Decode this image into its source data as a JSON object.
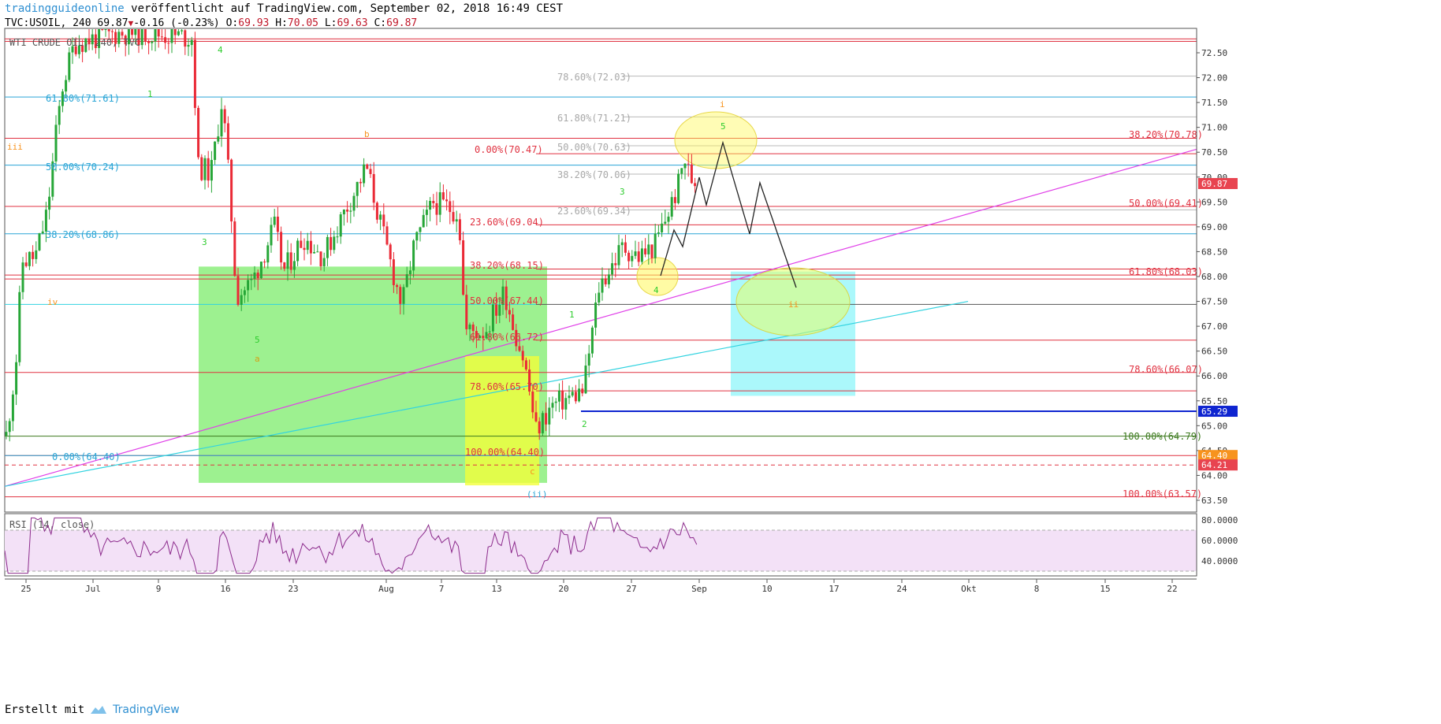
{
  "header": {
    "author": "tradingguideonline",
    "published_text": "veröffentlicht auf TradingView.com, September 02, 2018 16:49 CEST",
    "symbol": "TVC:USOIL",
    "interval": "240",
    "last": "69.87",
    "change": "-0.16 (-0.23%)",
    "open_label": "O:",
    "open": "69.93",
    "high_label": "H:",
    "high": "70.05",
    "low_label": "L:",
    "low": "69.63",
    "close_label": "C:",
    "close": "69.87"
  },
  "footer": {
    "created_with": "Erstellt mit",
    "brand": "TradingView"
  },
  "colors": {
    "up": "#26a637",
    "down": "#ea2a36",
    "red_line": "#e03241",
    "blue_fib": "#2aa5d6",
    "cyan_line": "#32d3e0",
    "magenta_line": "#e040e8",
    "green_box": "#8cef7c",
    "yellow_box": "#f2ff3a",
    "cyan_box": "#9cf7fa",
    "rsi_line": "#8c2b8c",
    "rsi_bg": "#f3e1f7",
    "price_tag": "#e84450",
    "blue_tag": "#0e24d0",
    "orange_tag": "#f7931e"
  },
  "chart_data": {
    "type": "candlestick",
    "instrument_label": "WTI CRUDE OIL, 240, TVC",
    "ylim": [
      63.3,
      72.85
    ],
    "yticks": [
      "72.50",
      "72.00",
      "71.50",
      "71.00",
      "70.50",
      "70.00",
      "69.50",
      "69.00",
      "68.50",
      "68.00",
      "67.50",
      "67.00",
      "66.50",
      "66.00",
      "65.50",
      "65.00",
      "64.50",
      "64.00",
      "63.50"
    ],
    "xticks": [
      "25",
      "Jul",
      "9",
      "16",
      "23",
      "Aug",
      "7",
      "13",
      "20",
      "27",
      "Sep",
      "10",
      "17",
      "24",
      "Okt",
      "8",
      "15",
      "22"
    ],
    "price_tags": [
      {
        "value": 69.87,
        "label": "69.87",
        "color": "#e84450"
      },
      {
        "value": 65.29,
        "label": "65.29",
        "color": "#0e24d0"
      },
      {
        "value": 64.4,
        "label": "64.40",
        "color": "#f7931e"
      },
      {
        "value": 64.21,
        "label": "64.21",
        "color": "#e84450"
      }
    ],
    "fib_labels": [
      {
        "text": "61.80%(71.61)",
        "value": 71.61,
        "color": "#2aa5d6"
      },
      {
        "text": "50.00%(70.24)",
        "value": 70.24,
        "color": "#2aa5d6"
      },
      {
        "text": "38.20%(68.86)",
        "value": 68.86,
        "color": "#2aa5d6"
      },
      {
        "text": "0.00%(64.40)",
        "value": 64.4,
        "color": "#2aa5d6"
      },
      {
        "text": "78.60%(72.03)",
        "value": 72.03,
        "color": "#a8a8a8"
      },
      {
        "text": "61.80%(71.21)",
        "value": 71.21,
        "color": "#a8a8a8"
      },
      {
        "text": "50.00%(70.63)",
        "value": 70.63,
        "color": "#a8a8a8"
      },
      {
        "text": "38.20%(70.06)",
        "value": 70.06,
        "color": "#a8a8a8"
      },
      {
        "text": "23.60%(69.34)",
        "value": 69.34,
        "color": "#a8a8a8"
      },
      {
        "text": "0.00%(70.47)",
        "value": 70.47,
        "color": "#e03241"
      },
      {
        "text": "23.60%(69.04)",
        "value": 69.04,
        "color": "#e03241"
      },
      {
        "text": "38.20%(68.15)",
        "value": 68.15,
        "color": "#e03241"
      },
      {
        "text": "50.00%(67.44)",
        "value": 67.44,
        "color": "#e03241"
      },
      {
        "text": "61.80%(66.72)",
        "value": 66.72,
        "color": "#e03241"
      },
      {
        "text": "78.60%(65.70)",
        "value": 65.7,
        "color": "#e03241"
      },
      {
        "text": "100.00%(64.40)",
        "value": 64.4,
        "color": "#e03241"
      },
      {
        "text": "38.20%(70.78)",
        "value": 70.78,
        "color": "#e03241"
      },
      {
        "text": "50.00%(69.41)",
        "value": 69.41,
        "color": "#e03241"
      },
      {
        "text": "61.80%(68.03)",
        "value": 68.03,
        "color": "#e03241"
      },
      {
        "text": "78.60%(66.07)",
        "value": 66.07,
        "color": "#e03241"
      },
      {
        "text": "100.00%(64.79)",
        "value": 64.79,
        "color": "#3d7a1e"
      },
      {
        "text": "100.00%(63.57)",
        "value": 63.57,
        "color": "#e03241"
      }
    ],
    "wave_labels": [
      "4",
      "1",
      "iii",
      "iv",
      "3",
      "5",
      "a",
      "b",
      "3",
      "4",
      "5",
      "i",
      "ii",
      "1",
      "2",
      "c",
      "(ii)"
    ],
    "rsi": {
      "label": "RSI (14, close)",
      "yticks": [
        "80.0000",
        "60.0000",
        "40.0000"
      ],
      "band": [
        30,
        70
      ]
    }
  }
}
